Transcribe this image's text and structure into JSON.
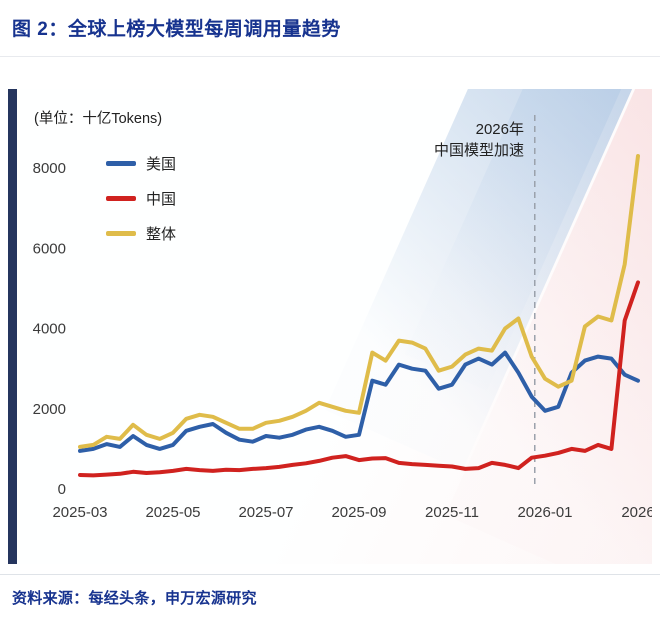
{
  "page": {
    "title": "图 2：全球上榜大模型每周调用量趋势",
    "source": "资料来源：每经头条，申万宏源研究",
    "accent_color": "#17338f"
  },
  "chart": {
    "unit_label": "(单位：十亿Tokens)",
    "annotation": {
      "line1": "2026年",
      "line2": "中国模型加速"
    },
    "legend": [
      {
        "label": "美国",
        "color": "#2e5fa8"
      },
      {
        "label": "中国",
        "color": "#d0221f"
      },
      {
        "label": "整体",
        "color": "#dfbc4a"
      }
    ]
  },
  "chart_data": {
    "type": "line",
    "title": "全球上榜大模型每周调用量趋势",
    "unit": "十亿Tokens",
    "legend_position": "top-left",
    "grid": false,
    "x_tick_labels": [
      "2025-03",
      "2025-05",
      "2025-07",
      "2025-09",
      "2025-11",
      "2026-01",
      "2026"
    ],
    "y_ticks": [
      0,
      2000,
      4000,
      6000,
      8000
    ],
    "ylim": [
      0,
      8600
    ],
    "dashed_line_x_fraction": 0.815,
    "dashed_line_color": "#9aa1ab",
    "series": [
      {
        "name": "美国",
        "color": "#2e5fa8",
        "values": [
          950,
          1000,
          1120,
          1050,
          1320,
          1100,
          1000,
          1100,
          1450,
          1550,
          1620,
          1400,
          1230,
          1180,
          1320,
          1280,
          1350,
          1480,
          1550,
          1450,
          1300,
          1350,
          2700,
          2600,
          3100,
          3000,
          2950,
          2500,
          2600,
          3100,
          3250,
          3100,
          3400,
          2900,
          2300,
          1950,
          2050,
          2900,
          3200,
          3300,
          3250,
          2850,
          2700
        ]
      },
      {
        "name": "中国",
        "color": "#d0221f",
        "values": [
          350,
          340,
          360,
          380,
          430,
          400,
          420,
          450,
          500,
          470,
          450,
          480,
          470,
          500,
          520,
          550,
          600,
          640,
          700,
          780,
          820,
          720,
          760,
          770,
          650,
          620,
          600,
          580,
          560,
          500,
          520,
          650,
          600,
          520,
          780,
          830,
          900,
          1000,
          950,
          1100,
          1000,
          4200,
          5150
        ]
      },
      {
        "name": "整体",
        "color": "#dfbc4a",
        "values": [
          1050,
          1100,
          1300,
          1250,
          1600,
          1350,
          1250,
          1400,
          1750,
          1850,
          1800,
          1650,
          1500,
          1500,
          1650,
          1700,
          1800,
          1950,
          2150,
          2050,
          1950,
          1900,
          3400,
          3200,
          3700,
          3650,
          3500,
          2950,
          3050,
          3350,
          3500,
          3450,
          4000,
          4250,
          3300,
          2750,
          2550,
          2700,
          4050,
          4300,
          4200,
          5600,
          8300
        ]
      }
    ]
  }
}
